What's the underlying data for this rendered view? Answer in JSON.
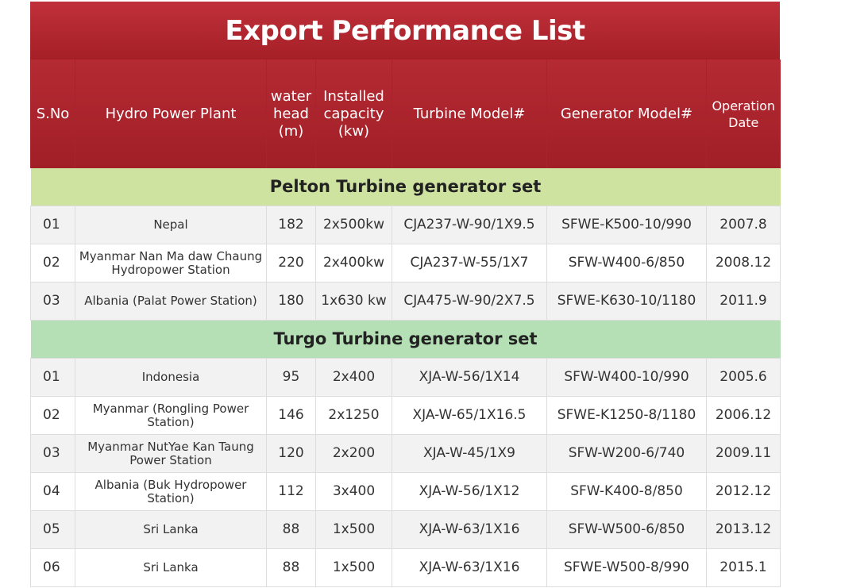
{
  "title": "Export Performance List",
  "colors": {
    "header": "#a51f27",
    "pelton_band": "#cfe3a0",
    "turgo_band": "#b5e0b5"
  },
  "columns": [
    "S.No",
    "Hydro Power Plant",
    "water head (m)",
    "Installed capacity (kw)",
    "Turbine Model#",
    "Generator Model#",
    "Operation Date"
  ],
  "sections": [
    {
      "name": "Pelton Turbine generator set",
      "rows": [
        [
          "01",
          "Nepal",
          "182",
          "2x500kw",
          "CJA237-W-90/1X9.5",
          "SFWE-K500-10/990",
          "2007.8"
        ],
        [
          "02",
          "Myanmar Nan Ma daw Chaung Hydropower Station",
          "220",
          "2x400kw",
          "CJA237-W-55/1X7",
          "SFW-W400-6/850",
          "2008.12"
        ],
        [
          "03",
          "Albania (Palat Power Station)",
          "180",
          "1x630 kw",
          "CJA475-W-90/2X7.5",
          "SFWE-K630-10/1180",
          "2011.9"
        ]
      ]
    },
    {
      "name": "Turgo Turbine generator set",
      "rows": [
        [
          "01",
          "Indonesia",
          "95",
          "2x400",
          "XJA-W-56/1X14",
          "SFW-W400-10/990",
          "2005.6"
        ],
        [
          "02",
          "Myanmar (Rongling Power Station)",
          "146",
          "2x1250",
          "XJA-W-65/1X16.5",
          "SFWE-K1250-8/1180",
          "2006.12"
        ],
        [
          "03",
          "Myanmar NutYae Kan Taung Power Station",
          "120",
          "2x200",
          "XJA-W-45/1X9",
          "SFW-W200-6/740",
          "2009.11"
        ],
        [
          "04",
          "Albania (Buk Hydropower Station)",
          "112",
          "3x400",
          "XJA-W-56/1X12",
          "SFW-K400-8/850",
          "2012.12"
        ],
        [
          "05",
          "Sri Lanka",
          "88",
          "1x500",
          "XJA-W-63/1X16",
          "SFW-W500-6/850",
          "2013.12"
        ],
        [
          "06",
          "Sri Lanka",
          "88",
          "1x500",
          "XJA-W-63/1X16",
          "SFWE-W500-8/990",
          "2015.1"
        ]
      ]
    }
  ]
}
